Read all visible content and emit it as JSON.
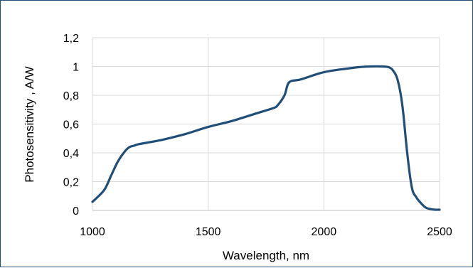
{
  "chart_data": {
    "type": "line",
    "title": "",
    "xlabel": "Wavelength, nm",
    "ylabel": "Photosensitivity ,  A/W",
    "xlim": [
      1000,
      2500
    ],
    "ylim": [
      0,
      1.2
    ],
    "x_ticks": [
      1000,
      1500,
      2000,
      2500
    ],
    "x_tick_labels": [
      "1000",
      "1500",
      "2000",
      "2500"
    ],
    "y_ticks": [
      0,
      0.2,
      0.4,
      0.6,
      0.8,
      1,
      1.2
    ],
    "y_tick_labels": [
      "0",
      "0,2",
      "0,4",
      "0,6",
      "0,8",
      "1",
      "1,2"
    ],
    "grid": "vertical and horizontal",
    "legend": "none",
    "line_color": "#1f4e79",
    "series": [
      {
        "x": [
          1000,
          1050,
          1080,
          1110,
          1140,
          1160,
          1180,
          1200,
          1300,
          1400,
          1500,
          1600,
          1700,
          1780,
          1800,
          1830,
          1850,
          1900,
          2000,
          2100,
          2150,
          2200,
          2250,
          2280,
          2300,
          2320,
          2340,
          2360,
          2380,
          2400,
          2420,
          2440,
          2460,
          2480,
          2500
        ],
        "y": [
          0.06,
          0.14,
          0.24,
          0.34,
          0.41,
          0.44,
          0.45,
          0.46,
          0.49,
          0.53,
          0.58,
          0.62,
          0.67,
          0.71,
          0.73,
          0.8,
          0.89,
          0.91,
          0.96,
          0.985,
          0.995,
          1.0,
          1.0,
          0.995,
          0.97,
          0.9,
          0.72,
          0.4,
          0.16,
          0.09,
          0.05,
          0.02,
          0.01,
          0.005,
          0.005
        ]
      }
    ]
  }
}
